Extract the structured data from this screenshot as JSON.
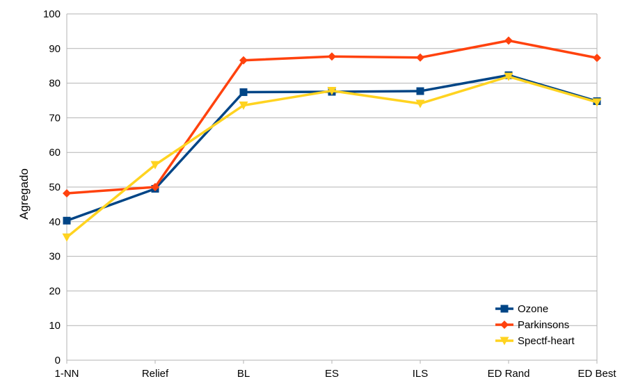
{
  "chart_data": {
    "type": "line",
    "categories": [
      "1-NN",
      "Relief",
      "BL",
      "ES",
      "ILS",
      "ED Rand",
      "ED Best"
    ],
    "series": [
      {
        "name": "Ozone",
        "values": [
          40.3,
          49.5,
          77.4,
          77.5,
          77.7,
          82.3,
          74.8
        ],
        "color": "#004586",
        "marker": "square"
      },
      {
        "name": "Parkinsons",
        "values": [
          48.2,
          50.0,
          86.6,
          87.7,
          87.4,
          92.3,
          87.3
        ],
        "color": "#ff420e",
        "marker": "diamond"
      },
      {
        "name": "Spectf-heart",
        "values": [
          35.5,
          56.4,
          73.6,
          77.8,
          74.1,
          81.9,
          74.5
        ],
        "color": "#ffd320",
        "marker": "triangle-down"
      }
    ],
    "title": "",
    "xlabel": "",
    "ylabel": "Agregado",
    "ylim": [
      0,
      100
    ],
    "yticks": [
      0,
      10,
      20,
      30,
      40,
      50,
      60,
      70,
      80,
      90,
      100
    ],
    "grid": "horizontal",
    "legend_position": "bottom-right"
  }
}
